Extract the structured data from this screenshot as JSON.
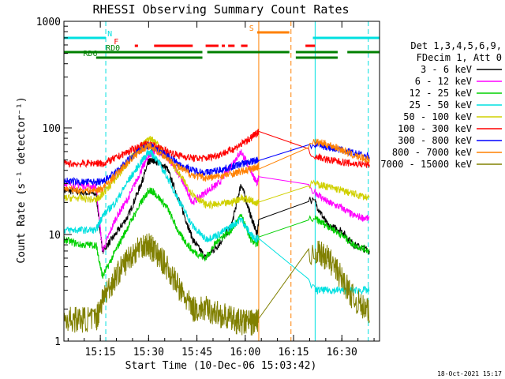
{
  "chart_data": {
    "type": "line",
    "title": "RHESSI Observing Summary Count Rates",
    "xlabel": "Start Time (10-Dec-06 15:03:42)",
    "ylabel": "Count Rate (s⁻¹ detector⁻¹)",
    "yscale": "log",
    "ylim": [
      1,
      1000
    ],
    "xlim_minutes": [
      0,
      40
    ],
    "x_ticks": [
      {
        "label": "15:15",
        "t": 11.3
      },
      {
        "label": "15:30",
        "t": 26.3
      },
      {
        "label": "15:45",
        "t": 41.3
      },
      {
        "label": "16:00",
        "t": 56.3
      },
      {
        "label": "16:15",
        "t": 71.3
      },
      {
        "label": "16:30",
        "t": 86.3
      }
    ],
    "y_ticks": [
      {
        "label": "1",
        "v": 1
      },
      {
        "label": "10",
        "v": 10
      },
      {
        "label": "100",
        "v": 100
      },
      {
        "label": "1000",
        "v": 1000
      }
    ],
    "header_lines": [
      "Det 1,3,4,5,6,9,",
      "FDecim 1, Att 0"
    ],
    "series": [
      {
        "name": "3 - 6 keV",
        "color": "#000000",
        "x": [
          0,
          5,
          10,
          12,
          16,
          20,
          24,
          26.3,
          28,
          32,
          36,
          40,
          44,
          48,
          52,
          55,
          58,
          60,
          62,
          78,
          82,
          86,
          90,
          95
        ],
        "y": [
          26,
          25,
          24,
          7,
          10,
          15,
          30,
          48,
          50,
          42,
          20,
          9,
          6,
          8,
          12,
          30,
          15,
          10,
          38,
          20,
          12,
          11,
          8,
          7
        ]
      },
      {
        "name": "6 - 12 keV",
        "color": "#ff00ff",
        "x": [
          0,
          5,
          10,
          12,
          16,
          20,
          24,
          26.3,
          28,
          32,
          36,
          40,
          44,
          48,
          52,
          55,
          58,
          60,
          62,
          78,
          82,
          86,
          90,
          95
        ],
        "y": [
          30,
          29,
          28,
          7,
          14,
          22,
          40,
          55,
          60,
          55,
          35,
          20,
          25,
          30,
          45,
          60,
          40,
          30,
          50,
          25,
          20,
          18,
          15,
          14
        ]
      },
      {
        "name": "12 - 25 keV",
        "color": "#00d000",
        "x": [
          0,
          5,
          10,
          12,
          16,
          20,
          24,
          26.3,
          28,
          32,
          36,
          40,
          44,
          48,
          52,
          55,
          58,
          60,
          62,
          78,
          82,
          86,
          90,
          95
        ],
        "y": [
          9,
          8,
          8,
          4,
          7,
          12,
          20,
          26,
          25,
          18,
          10,
          7,
          6,
          9,
          11,
          15,
          9,
          8,
          14,
          14,
          12,
          10,
          8,
          7
        ]
      },
      {
        "name": "25 - 50 keV",
        "color": "#00e0e0",
        "x": [
          0,
          5,
          10,
          12,
          16,
          20,
          24,
          26.3,
          28,
          32,
          36,
          40,
          44,
          48,
          52,
          55,
          58,
          60,
          62,
          78,
          82,
          86,
          90,
          95
        ],
        "y": [
          11,
          11,
          11,
          15,
          20,
          32,
          48,
          60,
          55,
          35,
          20,
          12,
          9,
          10,
          12,
          14,
          10,
          9,
          12,
          3,
          3,
          3,
          3,
          3
        ]
      },
      {
        "name": "50 - 100 keV",
        "color": "#d0d000",
        "x": [
          0,
          5,
          10,
          12,
          16,
          20,
          24,
          26.3,
          28,
          32,
          36,
          40,
          44,
          48,
          52,
          55,
          58,
          60,
          62,
          78,
          82,
          86,
          90,
          95
        ],
        "y": [
          22,
          22,
          21,
          24,
          33,
          48,
          68,
          80,
          75,
          55,
          36,
          24,
          19,
          19,
          20,
          22,
          21,
          20,
          23,
          30,
          28,
          26,
          24,
          22
        ]
      },
      {
        "name": "100 - 300 keV",
        "color": "#ff0000",
        "x": [
          0,
          5,
          10,
          12,
          16,
          20,
          24,
          26.3,
          28,
          32,
          36,
          40,
          44,
          48,
          52,
          55,
          58,
          60,
          62,
          78,
          82,
          86,
          90,
          95
        ],
        "y": [
          46,
          46,
          47,
          46,
          52,
          60,
          68,
          70,
          68,
          60,
          55,
          52,
          52,
          56,
          62,
          70,
          80,
          90,
          100,
          55,
          50,
          48,
          46,
          45
        ]
      },
      {
        "name": "300 - 800 keV",
        "color": "#0000ff",
        "x": [
          0,
          5,
          10,
          12,
          16,
          20,
          24,
          26.3,
          28,
          32,
          36,
          40,
          44,
          48,
          52,
          55,
          58,
          60,
          62,
          78,
          82,
          86,
          90,
          95
        ],
        "y": [
          32,
          31,
          31,
          31,
          38,
          50,
          63,
          68,
          65,
          55,
          45,
          40,
          38,
          40,
          43,
          46,
          48,
          50,
          52,
          70,
          66,
          62,
          58,
          54
        ]
      },
      {
        "name": "800 - 7000 keV",
        "color": "#ff8000",
        "x": [
          0,
          5,
          10,
          12,
          16,
          20,
          24,
          26.3,
          28,
          32,
          36,
          40,
          44,
          48,
          52,
          55,
          58,
          60,
          62,
          78,
          82,
          86,
          90,
          95
        ],
        "y": [
          27,
          26,
          26,
          27,
          36,
          48,
          62,
          68,
          64,
          52,
          42,
          36,
          34,
          35,
          37,
          39,
          41,
          43,
          46,
          74,
          70,
          63,
          55,
          50
        ]
      },
      {
        "name": "7000 - 15000 keV",
        "color": "#808000",
        "x": [
          0,
          5,
          10,
          12,
          16,
          20,
          24,
          26.3,
          28,
          32,
          36,
          40,
          44,
          48,
          52,
          55,
          58,
          60,
          62,
          78,
          82,
          86,
          90,
          95
        ],
        "y": [
          1.6,
          1.6,
          1.6,
          2.5,
          4,
          6,
          8,
          8,
          7,
          5,
          3,
          2,
          2,
          1.8,
          1.6,
          1.5,
          1.5,
          1.5,
          1.5,
          7,
          6,
          4,
          2.5,
          1.8
        ]
      }
    ],
    "flags": [
      {
        "name": "N",
        "color": "#00e0e0",
        "segments": [
          [
            0,
            13
          ],
          [
            77.3,
            98
          ]
        ]
      },
      {
        "name": "F",
        "color": "#ff0000",
        "segments": [
          [
            22,
            23
          ],
          [
            28,
            40
          ],
          [
            44,
            48
          ],
          [
            49,
            50
          ],
          [
            51,
            53
          ],
          [
            55,
            57
          ],
          [
            75,
            78
          ]
        ]
      },
      {
        "name": "S",
        "color": "#ff8000",
        "segments": [
          [
            60,
            70
          ]
        ]
      },
      {
        "name": "RD0",
        "color": "#008000",
        "segments": [
          [
            0,
            43
          ],
          [
            44.5,
            70
          ],
          [
            72,
            85
          ],
          [
            88,
            98
          ]
        ]
      },
      {
        "name": "RD6",
        "color": "#008000",
        "segments": [
          [
            10,
            43
          ],
          [
            72,
            85
          ]
        ]
      }
    ],
    "gaps": [
      {
        "color": "#00e0e0",
        "t": 0,
        "style": "solid"
      },
      {
        "color": "#00e0e0",
        "t": 13,
        "style": "dashed"
      },
      {
        "color": "#ff8000",
        "t": 60.5,
        "style": "solid"
      },
      {
        "color": "#ff8000",
        "t": 70.5,
        "style": "dashed"
      },
      {
        "color": "#00e0e0",
        "t": 78,
        "style": "solid"
      },
      {
        "color": "#00e0e0",
        "t": 94.5,
        "style": "dashed"
      }
    ],
    "timestamp": "18-Oct-2021 15:17"
  }
}
